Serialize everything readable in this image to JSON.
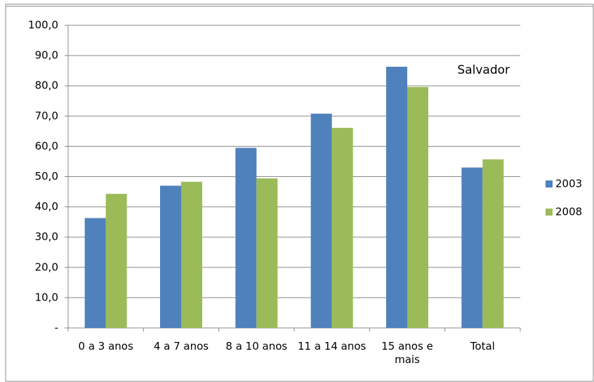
{
  "chart_data": {
    "type": "bar",
    "annotation": "Salvador",
    "categories": [
      "0 a 3 anos",
      "4 a 7 anos",
      "8 a 10 anos",
      "11 a 14 anos",
      "15 anos e mais",
      "Total"
    ],
    "series": [
      {
        "name": "2003",
        "color": "#4f81bd",
        "values": [
          36.3,
          47.0,
          59.5,
          70.8,
          86.3,
          53.0
        ]
      },
      {
        "name": "2008",
        "color": "#9bbb59",
        "values": [
          44.3,
          48.3,
          49.4,
          66.1,
          79.6,
          55.7
        ]
      }
    ],
    "ylim": [
      0,
      100
    ],
    "yticks": [
      {
        "value": 0,
        "label": "-"
      },
      {
        "value": 10,
        "label": "10,0"
      },
      {
        "value": 20,
        "label": "20,0"
      },
      {
        "value": 30,
        "label": "30,0"
      },
      {
        "value": 40,
        "label": "40,0"
      },
      {
        "value": 50,
        "label": "50,0"
      },
      {
        "value": 60,
        "label": "60,0"
      },
      {
        "value": 70,
        "label": "70,0"
      },
      {
        "value": 80,
        "label": "80,0"
      },
      {
        "value": 90,
        "label": "90,0"
      },
      {
        "value": 100,
        "label": "100,0"
      }
    ],
    "grid": true,
    "legend": "right"
  }
}
